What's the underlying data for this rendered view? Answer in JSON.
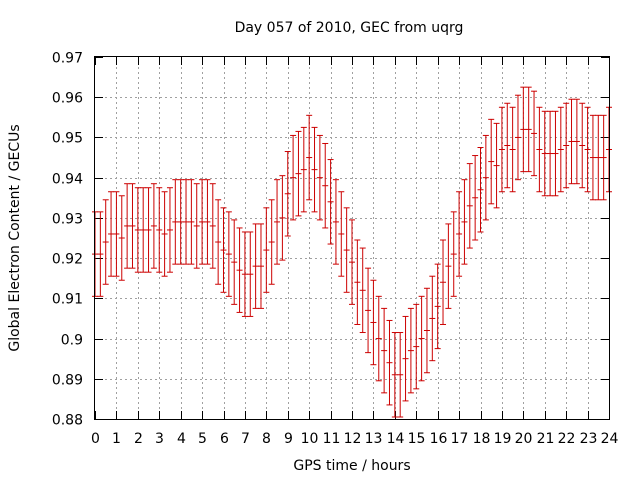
{
  "chart_data": {
    "type": "line",
    "title": "Day 057 of 2010, GEC from uqrg",
    "xlabel": "GPS time / hours",
    "ylabel": "Global Electron Content / GECUs",
    "xlim": [
      0,
      24
    ],
    "ylim": [
      0.88,
      0.97
    ],
    "grid": true,
    "x_ticks": [
      0,
      1,
      2,
      3,
      4,
      5,
      6,
      7,
      8,
      9,
      10,
      11,
      12,
      13,
      14,
      15,
      16,
      17,
      18,
      19,
      20,
      21,
      22,
      23,
      24
    ],
    "y_ticks": [
      0.88,
      0.89,
      0.9,
      0.91,
      0.92,
      0.93,
      0.94,
      0.95,
      0.96,
      0.97
    ],
    "x_tick_labels": [
      "0",
      "1",
      "2",
      "3",
      "4",
      "5",
      "6",
      "7",
      "8",
      "9",
      "10",
      "11",
      "12",
      "13",
      "14",
      "15",
      "16",
      "17",
      "18",
      "19",
      "20",
      "21",
      "22",
      "23",
      "24"
    ],
    "y_tick_labels": [
      "0.88",
      "0.89",
      "0.9",
      "0.91",
      "0.92",
      "0.93",
      "0.94",
      "0.95",
      "0.96",
      "0.97"
    ],
    "error_half_width": 0.0105,
    "series": [
      {
        "color": "#cc0000",
        "x": [
          0,
          0.25,
          0.5,
          0.75,
          1,
          1.25,
          1.5,
          1.75,
          2,
          2.25,
          2.5,
          2.75,
          3,
          3.25,
          3.5,
          3.75,
          4,
          4.25,
          4.5,
          4.75,
          5,
          5.25,
          5.5,
          5.75,
          6,
          6.25,
          6.5,
          6.75,
          7,
          7.25,
          7.5,
          7.75,
          8,
          8.25,
          8.5,
          8.75,
          9,
          9.25,
          9.5,
          9.75,
          10,
          10.25,
          10.5,
          10.75,
          11,
          11.25,
          11.5,
          11.75,
          12,
          12.25,
          12.5,
          12.75,
          13,
          13.25,
          13.5,
          13.75,
          14,
          14.25,
          14.5,
          14.75,
          15,
          15.25,
          15.5,
          15.75,
          16,
          16.25,
          16.5,
          16.75,
          17,
          17.25,
          17.5,
          17.75,
          18,
          18.25,
          18.5,
          18.75,
          19,
          19.25,
          19.5,
          19.75,
          20,
          20.25,
          20.5,
          20.75,
          21,
          21.25,
          21.5,
          21.75,
          22,
          22.25,
          22.5,
          22.75,
          23,
          23.25,
          23.5,
          23.75,
          24
        ],
        "y": [
          0.921,
          0.921,
          0.924,
          0.926,
          0.926,
          0.925,
          0.928,
          0.928,
          0.927,
          0.927,
          0.927,
          0.928,
          0.927,
          0.926,
          0.927,
          0.929,
          0.929,
          0.929,
          0.929,
          0.928,
          0.929,
          0.929,
          0.928,
          0.924,
          0.922,
          0.921,
          0.919,
          0.917,
          0.916,
          0.916,
          0.918,
          0.918,
          0.922,
          0.924,
          0.929,
          0.93,
          0.936,
          0.94,
          0.941,
          0.942,
          0.945,
          0.942,
          0.94,
          0.938,
          0.934,
          0.929,
          0.926,
          0.922,
          0.919,
          0.914,
          0.912,
          0.907,
          0.904,
          0.9,
          0.897,
          0.894,
          0.891,
          0.891,
          0.895,
          0.897,
          0.898,
          0.9,
          0.902,
          0.905,
          0.908,
          0.914,
          0.918,
          0.921,
          0.926,
          0.929,
          0.933,
          0.935,
          0.937,
          0.94,
          0.944,
          0.943,
          0.947,
          0.948,
          0.947,
          0.95,
          0.952,
          0.952,
          0.951,
          0.947,
          0.946,
          0.946,
          0.946,
          0.947,
          0.948,
          0.949,
          0.949,
          0.948,
          0.947,
          0.945,
          0.945,
          0.945,
          0.947
        ]
      }
    ]
  }
}
